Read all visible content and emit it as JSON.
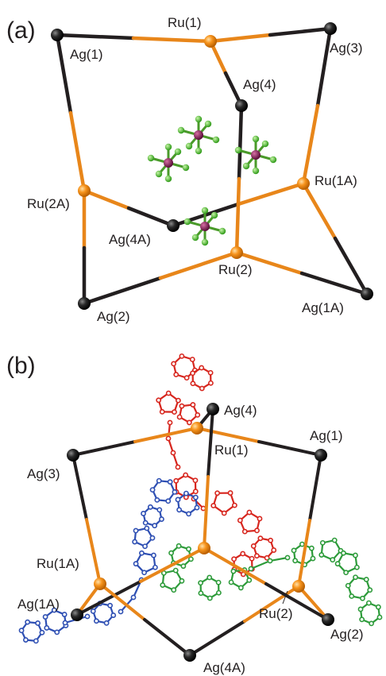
{
  "panel_a": {
    "label": "(a)",
    "atoms": {
      "ag1": "Ag(1)",
      "ru1": "Ru(1)",
      "ag3": "Ag(3)",
      "ag4": "Ag(4)",
      "ru1a": "Ru(1A)",
      "ru2a": "Ru(2A)",
      "ag4a": "Ag(4A)",
      "ru2": "Ru(2)",
      "ag2": "Ag(2)",
      "ag1a": "Ag(1A)"
    }
  },
  "panel_b": {
    "label": "(b)",
    "atoms": {
      "ag4": "Ag(4)",
      "ru1": "Ru(1)",
      "ag1": "Ag(1)",
      "ag3": "Ag(3)",
      "ru1a": "Ru(1A)",
      "ag1a": "Ag(1A)",
      "ru2": "Ru(2)",
      "ag2": "Ag(2)",
      "ag4a": "Ag(4A)"
    }
  },
  "colors": {
    "silver": "#231f20",
    "ruthenium": "#f7941d",
    "bond_orange": "#e8861a",
    "anion_center": "#8b1a5a",
    "fluorine": "#5cc93a",
    "ligand_red": "#d7261e",
    "ligand_blue": "#2e4fb3",
    "ligand_green": "#2d9b3a"
  }
}
